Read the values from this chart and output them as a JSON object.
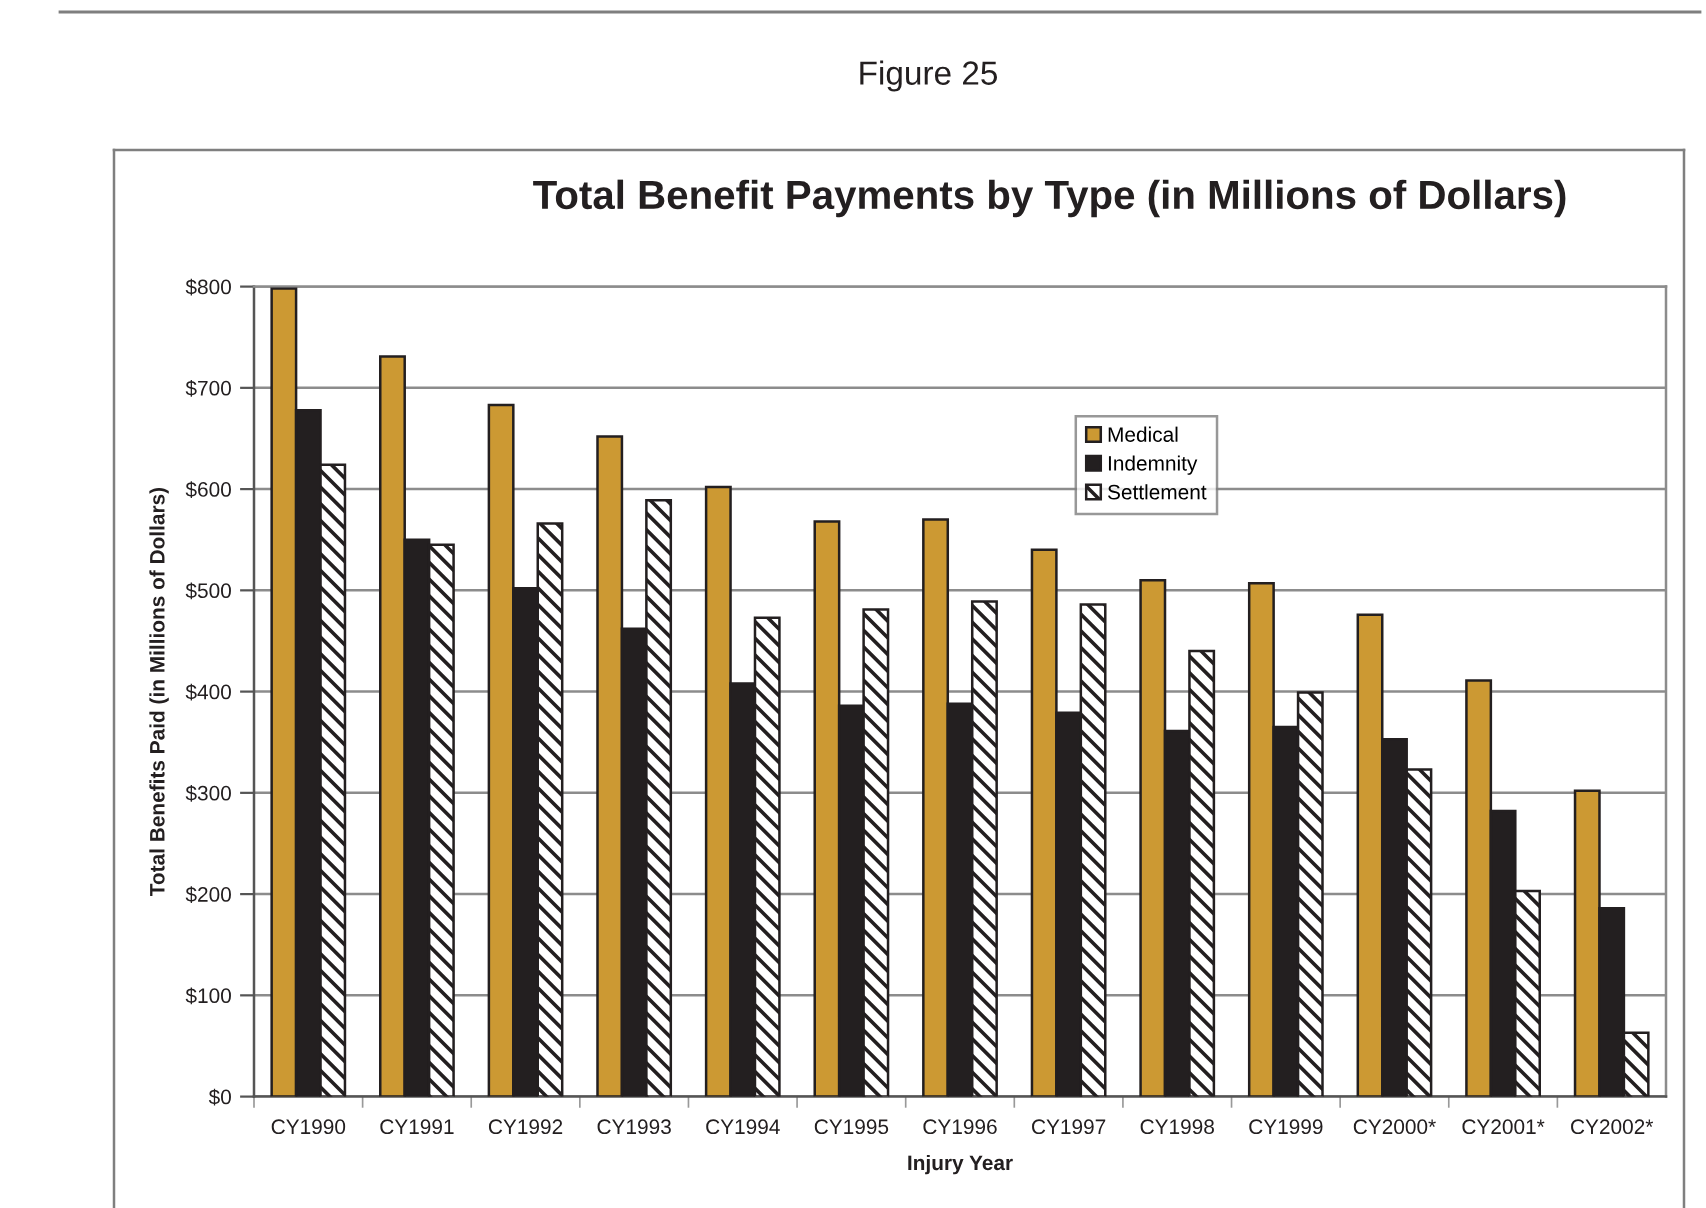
{
  "chart_data": {
    "type": "bar",
    "title": "Total Benefit Payments by Type (in Millions of Dollars)",
    "annotations": [
      "Figure 25"
    ],
    "xlabel": "Injury Year",
    "ylabel": "Total Benefits Paid (in Millions of Dollars)",
    "categories": [
      "CY1990",
      "CY1991",
      "CY1992",
      "CY1993",
      "CY1994",
      "CY1995",
      "CY1996",
      "CY1997",
      "CY1998",
      "CY1999",
      "CY2000*",
      "CY2001*",
      "CY2002*"
    ],
    "series": [
      {
        "name": "Medical",
        "color": "#cc9933",
        "values": [
          798,
          731,
          683,
          652,
          602,
          568,
          570,
          540,
          510,
          507,
          476,
          411,
          302
        ]
      },
      {
        "name": "Indemnity",
        "color": "#231f20",
        "values": [
          678,
          550,
          502,
          462,
          408,
          386,
          388,
          379,
          361,
          365,
          353,
          282,
          186
        ]
      },
      {
        "name": "Settlement",
        "color": "#231f20",
        "values": [
          624,
          545,
          566,
          589,
          473,
          481,
          489,
          486,
          440,
          399,
          323,
          203,
          63
        ]
      }
    ],
    "ylim": [
      0,
      800
    ],
    "yticks": [
      {
        "value": 0,
        "label": "$0"
      },
      {
        "value": 100,
        "label": "$100"
      },
      {
        "value": 200,
        "label": "$200"
      },
      {
        "value": 300,
        "label": "$300"
      },
      {
        "value": 400,
        "label": "$400"
      },
      {
        "value": 500,
        "label": "$500"
      },
      {
        "value": 600,
        "label": "$600"
      },
      {
        "value": 700,
        "label": "$700"
      },
      {
        "value": 800,
        "label": "$800"
      }
    ],
    "grid": "y",
    "legend": "top right"
  }
}
